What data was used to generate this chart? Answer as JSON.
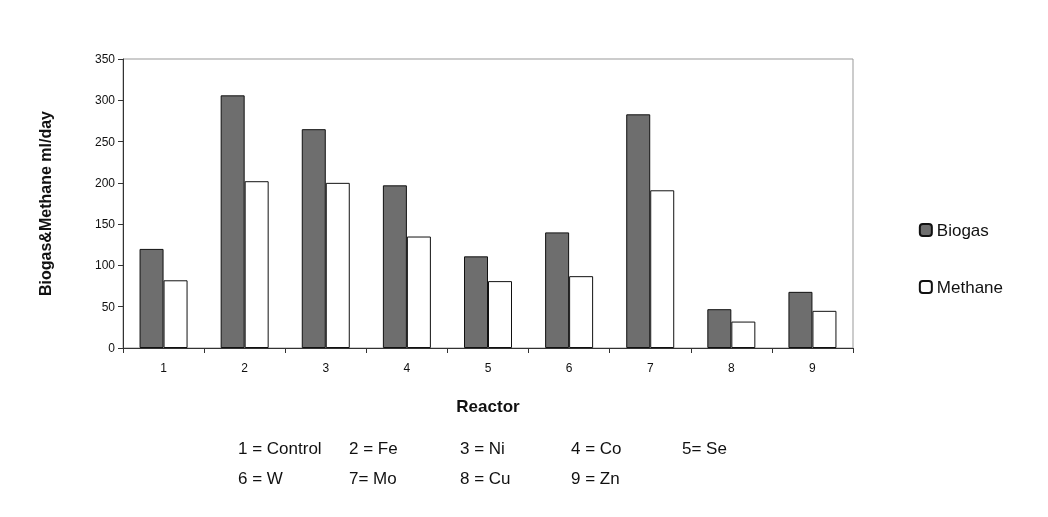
{
  "chart_data": {
    "type": "bar",
    "xlabel": "Reactor",
    "ylabel": "Biogas&Methane ml/day",
    "categories": [
      "1",
      "2",
      "3",
      "4",
      "5",
      "6",
      "7",
      "8",
      "9"
    ],
    "series": [
      {
        "name": "Biogas",
        "color": "#6e6e6e",
        "values": [
          120,
          306,
          265,
          197,
          111,
          140,
          283,
          47,
          68
        ]
      },
      {
        "name": "Methane",
        "color": "#ffffff",
        "values": [
          82,
          202,
          200,
          135,
          81,
          87,
          191,
          32,
          45
        ]
      }
    ],
    "ylim": [
      0,
      350
    ],
    "yticks": [
      0,
      50,
      100,
      150,
      200,
      250,
      300,
      350
    ],
    "grid": false,
    "legend": "right",
    "annotations": [
      "1 = Control",
      "2 = Fe",
      "3 = Ni",
      "4 = Co",
      "5= Se",
      "6 = W",
      "7= Mo",
      "8 = Cu",
      "9 = Zn"
    ]
  }
}
